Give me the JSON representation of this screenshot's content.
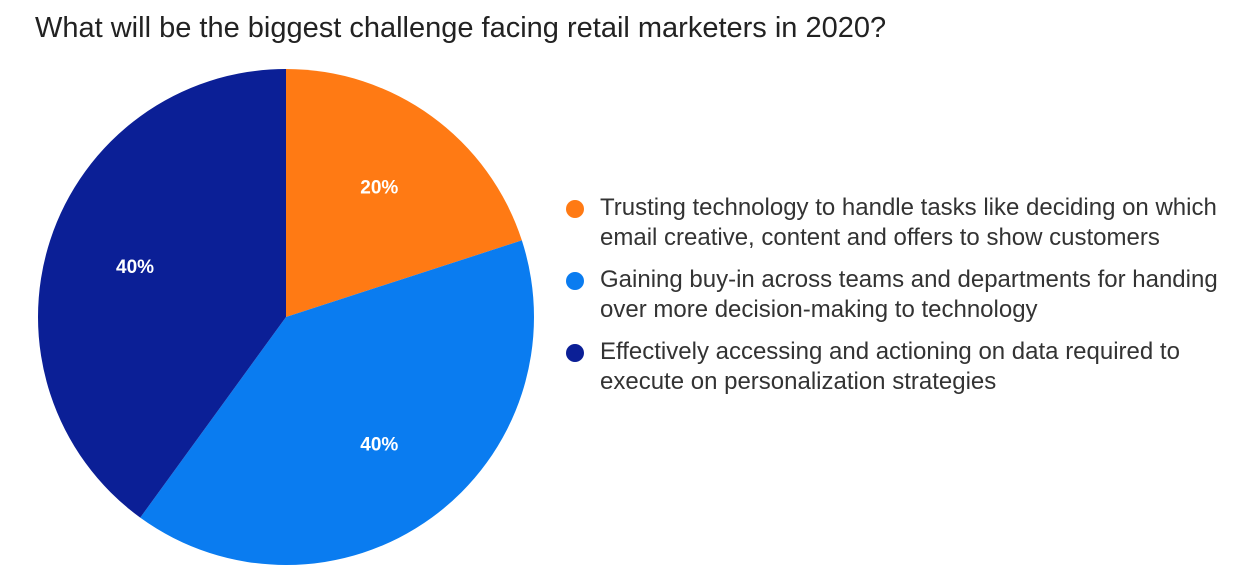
{
  "chart_data": {
    "type": "pie",
    "title": "What will be the biggest challenge facing retail marketers in 2020?",
    "slices": [
      {
        "label": "Trusting technology to handle tasks like deciding on which email creative, content and offers to show customers",
        "value": 20,
        "display": "20%",
        "color": "#FF7A14"
      },
      {
        "label": "Gaining buy-in across teams and departments for handing over more decision-making to technology",
        "value": 40,
        "display": "40%",
        "color": "#0A7CF0"
      },
      {
        "label": "Effectively accessing and actioning on data required to execute on personalization strategies",
        "value": 40,
        "display": "40%",
        "color": "#0B1F96"
      }
    ],
    "legend_position": "right"
  }
}
